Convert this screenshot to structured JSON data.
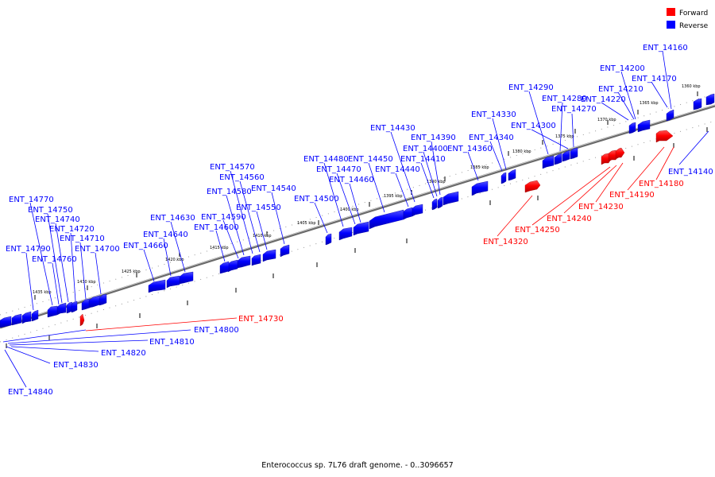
{
  "caption": "Enterococcus sp. 7L76 draft genome. - 0..3096657",
  "legend": [
    {
      "label": "Forward",
      "color": "#ff0000"
    },
    {
      "label": "Reverse",
      "color": "#0000ff"
    }
  ],
  "ticks": [
    "1360 kbp",
    "1365 kbp",
    "1370 kbp",
    "1375 kbp",
    "1380 kbp",
    "1385 kbp",
    "1390 kbp",
    "1395 kbp",
    "1400 kbp",
    "1405 kbp",
    "1410 kbp",
    "1415 kbp",
    "1420 kbp",
    "1425 kbp",
    "1430 kbp",
    "1435 kbp"
  ],
  "genes": [
    {
      "name": "ENT_14160",
      "strand": "reverse"
    },
    {
      "name": "ENT_14200",
      "strand": "reverse"
    },
    {
      "name": "ENT_14170",
      "strand": "reverse"
    },
    {
      "name": "ENT_14210",
      "strand": "reverse"
    },
    {
      "name": "ENT_14220",
      "strand": "reverse"
    },
    {
      "name": "ENT_14290",
      "strand": "reverse"
    },
    {
      "name": "ENT_14280",
      "strand": "reverse"
    },
    {
      "name": "ENT_14270",
      "strand": "reverse"
    },
    {
      "name": "ENT_14330",
      "strand": "reverse"
    },
    {
      "name": "ENT_14300",
      "strand": "reverse"
    },
    {
      "name": "ENT_14430",
      "strand": "reverse"
    },
    {
      "name": "ENT_14340",
      "strand": "reverse"
    },
    {
      "name": "ENT_14390",
      "strand": "reverse"
    },
    {
      "name": "ENT_14400",
      "strand": "reverse"
    },
    {
      "name": "ENT_14360",
      "strand": "reverse"
    },
    {
      "name": "ENT_14480",
      "strand": "reverse"
    },
    {
      "name": "ENT_14450",
      "strand": "reverse"
    },
    {
      "name": "ENT_14410",
      "strand": "reverse"
    },
    {
      "name": "ENT_14470",
      "strand": "reverse"
    },
    {
      "name": "ENT_14440",
      "strand": "reverse"
    },
    {
      "name": "ENT_14460",
      "strand": "reverse"
    },
    {
      "name": "ENT_14570",
      "strand": "reverse"
    },
    {
      "name": "ENT_14560",
      "strand": "reverse"
    },
    {
      "name": "ENT_14540",
      "strand": "reverse"
    },
    {
      "name": "ENT_14580",
      "strand": "reverse"
    },
    {
      "name": "ENT_14500",
      "strand": "reverse"
    },
    {
      "name": "ENT_14550",
      "strand": "reverse"
    },
    {
      "name": "ENT_14630",
      "strand": "reverse"
    },
    {
      "name": "ENT_14590",
      "strand": "reverse"
    },
    {
      "name": "ENT_14600",
      "strand": "reverse"
    },
    {
      "name": "ENT_14640",
      "strand": "reverse"
    },
    {
      "name": "ENT_14660",
      "strand": "reverse"
    },
    {
      "name": "ENT_14770",
      "strand": "reverse"
    },
    {
      "name": "ENT_14750",
      "strand": "reverse"
    },
    {
      "name": "ENT_14740",
      "strand": "reverse"
    },
    {
      "name": "ENT_14720",
      "strand": "reverse"
    },
    {
      "name": "ENT_14710",
      "strand": "reverse"
    },
    {
      "name": "ENT_14790",
      "strand": "reverse"
    },
    {
      "name": "ENT_14700",
      "strand": "reverse"
    },
    {
      "name": "ENT_14760",
      "strand": "reverse"
    },
    {
      "name": "ENT_14140",
      "strand": "reverse"
    },
    {
      "name": "ENT_14180",
      "strand": "forward"
    },
    {
      "name": "ENT_14190",
      "strand": "forward"
    },
    {
      "name": "ENT_14230",
      "strand": "forward"
    },
    {
      "name": "ENT_14240",
      "strand": "forward"
    },
    {
      "name": "ENT_14250",
      "strand": "forward"
    },
    {
      "name": "ENT_14320",
      "strand": "forward"
    },
    {
      "name": "ENT_14730",
      "strand": "forward"
    },
    {
      "name": "ENT_14800",
      "strand": "reverse"
    },
    {
      "name": "ENT_14810",
      "strand": "reverse"
    },
    {
      "name": "ENT_14820",
      "strand": "reverse"
    },
    {
      "name": "ENT_14830",
      "strand": "reverse"
    },
    {
      "name": "ENT_14840",
      "strand": "reverse"
    }
  ]
}
